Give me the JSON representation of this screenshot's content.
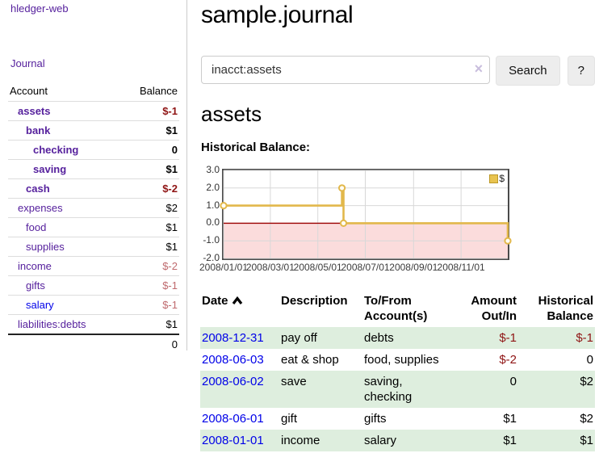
{
  "sidebar": {
    "app_title": "hledger-web",
    "nav": {
      "journal_label": "Journal"
    },
    "accounts_table": {
      "headers": {
        "account": "Account",
        "balance": "Balance"
      },
      "rows": [
        {
          "name": "assets",
          "balance": "$-1"
        },
        {
          "name": "bank",
          "balance": "$1"
        },
        {
          "name": "checking",
          "balance": "0"
        },
        {
          "name": "saving",
          "balance": "$1"
        },
        {
          "name": "cash",
          "balance": "$-2"
        },
        {
          "name": "expenses",
          "balance": "$2"
        },
        {
          "name": "food",
          "balance": "$1"
        },
        {
          "name": "supplies",
          "balance": "$1"
        },
        {
          "name": "income",
          "balance": "$-2"
        },
        {
          "name": "gifts",
          "balance": "$-1"
        },
        {
          "name": "salary",
          "balance": "$-1"
        },
        {
          "name": "liabilities:debts",
          "balance": "$1"
        }
      ],
      "total": "0"
    }
  },
  "main": {
    "title": "sample.journal",
    "search": {
      "value": "inacct:assets",
      "clear_icon": "×",
      "button_label": "Search",
      "help_label": "?"
    },
    "account_heading": "assets",
    "chart_label": "Historical Balance:"
  },
  "chart_data": {
    "type": "line",
    "step": true,
    "title": "Historical Balance:",
    "legend": [
      {
        "label": "$",
        "color": "#e8c34f"
      }
    ],
    "legend_position": "top-right",
    "grid": true,
    "x_range": [
      "2008-01-01",
      "2008-12-31"
    ],
    "ylim": [
      -2,
      3
    ],
    "y_ticks": [
      "3.0",
      "2.0",
      "1.0",
      "0.0",
      "-1.0",
      "-2.0"
    ],
    "x_ticks": [
      {
        "label": "2008/01/01",
        "date": "2008-01-01"
      },
      {
        "label": "2008/03/01",
        "date": "2008-03-01"
      },
      {
        "label": "2008/05/01",
        "date": "2008-05-01"
      },
      {
        "label": "2008/07/01",
        "date": "2008-07-01"
      },
      {
        "label": "2008/09/01",
        "date": "2008-09-01"
      },
      {
        "label": "2008/11/01",
        "date": "2008-11-01"
      }
    ],
    "series": [
      {
        "name": "$",
        "color": "#e2b84b",
        "points": [
          {
            "date": "2008-01-01",
            "value": 1
          },
          {
            "date": "2008-06-01",
            "value": 2
          },
          {
            "date": "2008-06-03",
            "value": 0
          },
          {
            "date": "2008-12-31",
            "value": -1
          }
        ]
      }
    ],
    "negative_region_color": "#fbdcdc",
    "zero_line_color": "#9b0000",
    "grid_color": "#d8d8d8"
  },
  "register": {
    "headers": {
      "date": "Date",
      "description": "Description",
      "tofrom": "To/From Account(s)",
      "amount": "Amount Out/In",
      "historical": "Historical Balance"
    },
    "rows": [
      {
        "date": "2008-12-31",
        "description": "pay off",
        "accounts": "debts",
        "amount": "$-1",
        "balance": "$-1"
      },
      {
        "date": "2008-06-03",
        "description": "eat & shop",
        "accounts": "food, supplies",
        "amount": "$-2",
        "balance": "0"
      },
      {
        "date": "2008-06-02",
        "description": "save",
        "accounts": "saving, checking",
        "amount": "0",
        "balance": "$2"
      },
      {
        "date": "2008-06-01",
        "description": "gift",
        "accounts": "gifts",
        "amount": "$1",
        "balance": "$2"
      },
      {
        "date": "2008-01-01",
        "description": "income",
        "accounts": "salary",
        "amount": "$1",
        "balance": "$1"
      }
    ]
  }
}
